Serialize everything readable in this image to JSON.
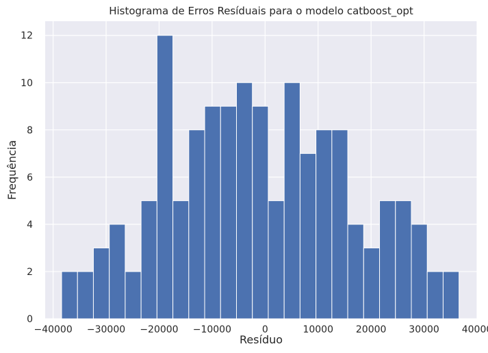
{
  "chart_data": {
    "type": "bar",
    "title": "Histograma de Erros Resíduais para o modelo catboost_opt",
    "xlabel": "Resíduo",
    "ylabel": "Frequência",
    "xlim": [
      -41500,
      40000
    ],
    "ylim": [
      0,
      12.6
    ],
    "x_ticks": [
      -40000,
      -30000,
      -20000,
      -10000,
      0,
      10000,
      20000,
      30000,
      40000
    ],
    "x_tick_labels": [
      "−40000",
      "−30000",
      "−20000",
      "−10000",
      "0",
      "10000",
      "20000",
      "30000",
      "40000"
    ],
    "y_ticks": [
      0,
      2,
      4,
      6,
      8,
      10,
      12
    ],
    "y_tick_labels": [
      "0",
      "2",
      "4",
      "6",
      "8",
      "10",
      "12"
    ],
    "grid": true,
    "bin_edges": [
      -38400,
      -35400,
      -32400,
      -29400,
      -26400,
      -23400,
      -20400,
      -17400,
      -14400,
      -11400,
      -8400,
      -5400,
      -2400,
      600,
      3600,
      6600,
      9600,
      12600,
      15600,
      18600,
      21600,
      24600,
      27600,
      30600,
      33600,
      36600
    ],
    "values": [
      2,
      2,
      3,
      4,
      2,
      5,
      12,
      5,
      8,
      9,
      9,
      10,
      9,
      5,
      10,
      7,
      8,
      8,
      4,
      3,
      5,
      5,
      4,
      2,
      2
    ]
  },
  "colors": {
    "background": "#eaeaf2",
    "bar": "#4c72b0",
    "grid": "#ffffff"
  }
}
